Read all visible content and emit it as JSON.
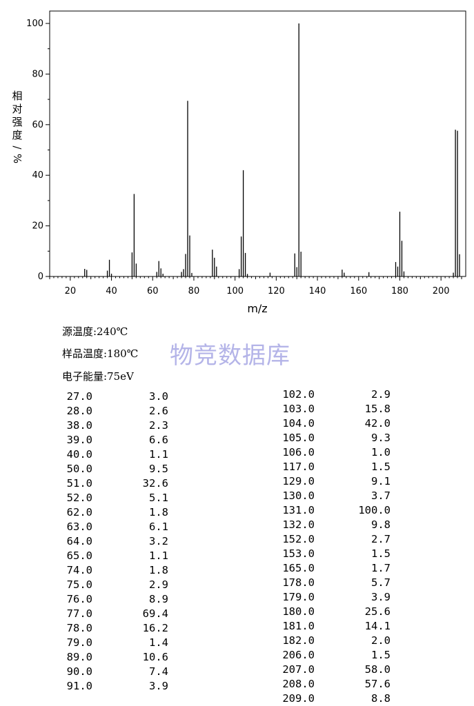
{
  "chart_data": {
    "type": "bar",
    "xlabel": "m/z",
    "ylabel": "相对强度/%",
    "xlim": [
      10,
      212
    ],
    "ylim": [
      0,
      105
    ],
    "x_ticks": [
      20,
      40,
      60,
      80,
      100,
      120,
      140,
      160,
      180,
      200
    ],
    "y_ticks": [
      0,
      20,
      40,
      60,
      80,
      100
    ],
    "grid": false,
    "peaks": [
      {
        "mz": 27.0,
        "intensity": 3.0
      },
      {
        "mz": 28.0,
        "intensity": 2.6
      },
      {
        "mz": 38.0,
        "intensity": 2.3
      },
      {
        "mz": 39.0,
        "intensity": 6.6
      },
      {
        "mz": 40.0,
        "intensity": 1.1
      },
      {
        "mz": 50.0,
        "intensity": 9.5
      },
      {
        "mz": 51.0,
        "intensity": 32.6
      },
      {
        "mz": 52.0,
        "intensity": 5.1
      },
      {
        "mz": 62.0,
        "intensity": 1.8
      },
      {
        "mz": 63.0,
        "intensity": 6.1
      },
      {
        "mz": 64.0,
        "intensity": 3.2
      },
      {
        "mz": 65.0,
        "intensity": 1.1
      },
      {
        "mz": 74.0,
        "intensity": 1.8
      },
      {
        "mz": 75.0,
        "intensity": 2.9
      },
      {
        "mz": 76.0,
        "intensity": 8.9
      },
      {
        "mz": 77.0,
        "intensity": 69.4
      },
      {
        "mz": 78.0,
        "intensity": 16.2
      },
      {
        "mz": 79.0,
        "intensity": 1.4
      },
      {
        "mz": 89.0,
        "intensity": 10.6
      },
      {
        "mz": 90.0,
        "intensity": 7.4
      },
      {
        "mz": 91.0,
        "intensity": 3.9
      },
      {
        "mz": 102.0,
        "intensity": 2.9
      },
      {
        "mz": 103.0,
        "intensity": 15.8
      },
      {
        "mz": 104.0,
        "intensity": 42.0
      },
      {
        "mz": 105.0,
        "intensity": 9.3
      },
      {
        "mz": 106.0,
        "intensity": 1.0
      },
      {
        "mz": 117.0,
        "intensity": 1.5
      },
      {
        "mz": 129.0,
        "intensity": 9.1
      },
      {
        "mz": 130.0,
        "intensity": 3.7
      },
      {
        "mz": 131.0,
        "intensity": 100.0
      },
      {
        "mz": 132.0,
        "intensity": 9.8
      },
      {
        "mz": 152.0,
        "intensity": 2.7
      },
      {
        "mz": 153.0,
        "intensity": 1.5
      },
      {
        "mz": 165.0,
        "intensity": 1.7
      },
      {
        "mz": 178.0,
        "intensity": 5.7
      },
      {
        "mz": 179.0,
        "intensity": 3.9
      },
      {
        "mz": 180.0,
        "intensity": 25.6
      },
      {
        "mz": 181.0,
        "intensity": 14.1
      },
      {
        "mz": 182.0,
        "intensity": 2.0
      },
      {
        "mz": 206.0,
        "intensity": 1.5
      },
      {
        "mz": 207.0,
        "intensity": 58.0
      },
      {
        "mz": 208.0,
        "intensity": 57.6
      },
      {
        "mz": 209.0,
        "intensity": 8.8
      }
    ]
  },
  "conditions": {
    "source_temp": "源温度:240℃",
    "sample_temp": "样品温度:180℃",
    "electron_energy": "电子能量:75eV"
  },
  "watermark": "物竞数据库",
  "peak_table": {
    "left": [
      [
        "27.0",
        "3.0"
      ],
      [
        "28.0",
        "2.6"
      ],
      [
        "38.0",
        "2.3"
      ],
      [
        "39.0",
        "6.6"
      ],
      [
        "40.0",
        "1.1"
      ],
      [
        "50.0",
        "9.5"
      ],
      [
        "51.0",
        "32.6"
      ],
      [
        "52.0",
        "5.1"
      ],
      [
        "62.0",
        "1.8"
      ],
      [
        "63.0",
        "6.1"
      ],
      [
        "64.0",
        "3.2"
      ],
      [
        "65.0",
        "1.1"
      ],
      [
        "74.0",
        "1.8"
      ],
      [
        "75.0",
        "2.9"
      ],
      [
        "76.0",
        "8.9"
      ],
      [
        "77.0",
        "69.4"
      ],
      [
        "78.0",
        "16.2"
      ],
      [
        "79.0",
        "1.4"
      ],
      [
        "89.0",
        "10.6"
      ],
      [
        "90.0",
        "7.4"
      ],
      [
        "91.0",
        "3.9"
      ]
    ],
    "right": [
      [
        "102.0",
        "2.9"
      ],
      [
        "103.0",
        "15.8"
      ],
      [
        "104.0",
        "42.0"
      ],
      [
        "105.0",
        "9.3"
      ],
      [
        "106.0",
        "1.0"
      ],
      [
        "117.0",
        "1.5"
      ],
      [
        "129.0",
        "9.1"
      ],
      [
        "130.0",
        "3.7"
      ],
      [
        "131.0",
        "100.0"
      ],
      [
        "132.0",
        "9.8"
      ],
      [
        "152.0",
        "2.7"
      ],
      [
        "153.0",
        "1.5"
      ],
      [
        "165.0",
        "1.7"
      ],
      [
        "178.0",
        "5.7"
      ],
      [
        "179.0",
        "3.9"
      ],
      [
        "180.0",
        "25.6"
      ],
      [
        "181.0",
        "14.1"
      ],
      [
        "182.0",
        "2.0"
      ],
      [
        "206.0",
        "1.5"
      ],
      [
        "207.0",
        "58.0"
      ],
      [
        "208.0",
        "57.6"
      ],
      [
        "209.0",
        "8.8"
      ]
    ]
  }
}
